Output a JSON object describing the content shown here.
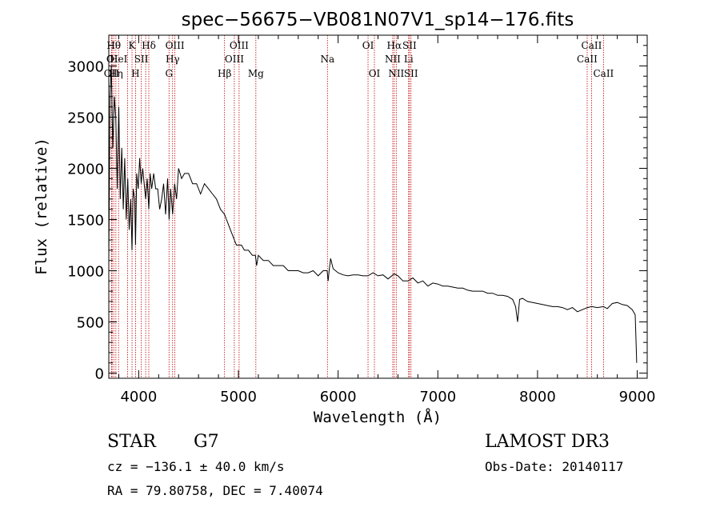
{
  "chart_data": {
    "type": "line",
    "title": "spec−56675−VB081N07V1_sp14−176.fits",
    "xlabel": "Wavelength (Å)",
    "ylabel": "Flux (relative)",
    "xlim": [
      3700,
      9100
    ],
    "ylim": [
      -50,
      3300
    ],
    "xticks": [
      4000,
      5000,
      6000,
      7000,
      8000,
      9000
    ],
    "yticks": [
      0,
      500,
      1000,
      1500,
      2000,
      2500,
      3000
    ],
    "series": [
      {
        "name": "flux",
        "x": [
          3700,
          3712,
          3725,
          3740,
          3755,
          3770,
          3785,
          3800,
          3815,
          3830,
          3845,
          3860,
          3875,
          3890,
          3905,
          3920,
          3933,
          3945,
          3960,
          3968,
          3980,
          3995,
          4010,
          4025,
          4040,
          4055,
          4070,
          4085,
          4101,
          4115,
          4130,
          4150,
          4170,
          4190,
          4210,
          4230,
          4250,
          4270,
          4290,
          4305,
          4320,
          4340,
          4360,
          4380,
          4400,
          4430,
          4460,
          4500,
          4540,
          4580,
          4620,
          4660,
          4700,
          4740,
          4780,
          4820,
          4861,
          4880,
          4900,
          4920,
          4940,
          4960,
          4980,
          5000,
          5030,
          5060,
          5100,
          5140,
          5170,
          5183,
          5200,
          5250,
          5300,
          5350,
          5400,
          5450,
          5500,
          5550,
          5600,
          5650,
          5700,
          5750,
          5800,
          5850,
          5890,
          5900,
          5910,
          5925,
          5950,
          6000,
          6050,
          6100,
          6150,
          6200,
          6250,
          6300,
          6350,
          6400,
          6450,
          6500,
          6563,
          6600,
          6650,
          6700,
          6750,
          6800,
          6850,
          6900,
          6950,
          7000,
          7050,
          7100,
          7150,
          7200,
          7250,
          7300,
          7350,
          7400,
          7450,
          7500,
          7550,
          7600,
          7650,
          7700,
          7750,
          7780,
          7800,
          7820,
          7850,
          7900,
          7950,
          8000,
          8050,
          8100,
          8150,
          8200,
          8250,
          8300,
          8350,
          8400,
          8450,
          8500,
          8542,
          8600,
          8662,
          8700,
          8750,
          8800,
          8850,
          8900,
          8950,
          8980,
          8995
        ],
        "y": [
          1100,
          2700,
          3000,
          2200,
          2700,
          2500,
          1800,
          2600,
          1700,
          2200,
          1600,
          2100,
          1500,
          1900,
          1400,
          1700,
          1200,
          1800,
          1700,
          1250,
          1950,
          1800,
          2100,
          1850,
          2000,
          1850,
          1700,
          1900,
          1600,
          1950,
          1800,
          1950,
          1800,
          1800,
          1600,
          1700,
          1850,
          1550,
          1900,
          1500,
          1800,
          1550,
          1850,
          1700,
          2000,
          1900,
          1950,
          1950,
          1850,
          1850,
          1750,
          1850,
          1800,
          1750,
          1700,
          1600,
          1550,
          1500,
          1450,
          1400,
          1350,
          1300,
          1250,
          1250,
          1250,
          1200,
          1200,
          1150,
          1150,
          1050,
          1150,
          1100,
          1100,
          1050,
          1050,
          1050,
          1000,
          1000,
          1000,
          980,
          980,
          1000,
          950,
          1000,
          1000,
          900,
          1000,
          1120,
          1020,
          980,
          960,
          950,
          960,
          960,
          950,
          950,
          980,
          950,
          960,
          920,
          970,
          950,
          900,
          900,
          930,
          880,
          900,
          850,
          880,
          870,
          850,
          850,
          840,
          830,
          830,
          810,
          800,
          800,
          800,
          780,
          780,
          760,
          760,
          750,
          720,
          650,
          500,
          720,
          730,
          700,
          690,
          680,
          670,
          660,
          650,
          650,
          640,
          620,
          640,
          600,
          620,
          640,
          650,
          640,
          650,
          630,
          680,
          690,
          670,
          660,
          620,
          570,
          100
        ]
      }
    ],
    "line_markers": [
      {
        "wl": 3727,
        "label": "OII",
        "row": 3
      },
      {
        "wl": 3733,
        "label": "OI",
        "row": 2
      },
      {
        "wl": 3750,
        "label": "Hθ",
        "row": 1
      },
      {
        "wl": 3771,
        "label": "Hη",
        "row": 3
      },
      {
        "wl": 3798,
        "label": "HeI",
        "row": 2
      },
      {
        "wl": 3889,
        "label": "",
        "row": 0
      },
      {
        "wl": 3933,
        "label": "K",
        "row": 1
      },
      {
        "wl": 3968,
        "label": "H",
        "row": 3
      },
      {
        "wl": 4026,
        "label": "SII",
        "row": 2
      },
      {
        "wl": 4070,
        "label": "",
        "row": 0
      },
      {
        "wl": 4101,
        "label": "Hδ",
        "row": 1
      },
      {
        "wl": 4304,
        "label": "G",
        "row": 3
      },
      {
        "wl": 4340,
        "label": "Hγ",
        "row": 2
      },
      {
        "wl": 4363,
        "label": "OIII",
        "row": 1
      },
      {
        "wl": 4861,
        "label": "Hβ",
        "row": 3
      },
      {
        "wl": 4959,
        "label": "OIII",
        "row": 2
      },
      {
        "wl": 5007,
        "label": "OIII",
        "row": 1
      },
      {
        "wl": 5175,
        "label": "Mg",
        "row": 3
      },
      {
        "wl": 5893,
        "label": "Na",
        "row": 2
      },
      {
        "wl": 6300,
        "label": "OI",
        "row": 1
      },
      {
        "wl": 6364,
        "label": "OI",
        "row": 3
      },
      {
        "wl": 6548,
        "label": "NII",
        "row": 2
      },
      {
        "wl": 6563,
        "label": "Hα",
        "row": 1
      },
      {
        "wl": 6583,
        "label": "NII",
        "row": 3
      },
      {
        "wl": 6707,
        "label": "Li",
        "row": 2
      },
      {
        "wl": 6716,
        "label": "SII",
        "row": 1
      },
      {
        "wl": 6731,
        "label": "SII",
        "row": 3
      },
      {
        "wl": 8498,
        "label": "CaII",
        "row": 2
      },
      {
        "wl": 8542,
        "label": "CaII",
        "row": 1
      },
      {
        "wl": 8662,
        "label": "CaII",
        "row": 3
      }
    ],
    "colors": {
      "spectrum": "#000000",
      "markers": "#c00000"
    }
  },
  "info": {
    "class": "STAR",
    "subclass": "G7",
    "survey": "LAMOST DR3",
    "cz": "cz = −136.1 ± 40.0 km/s",
    "obsdate": "Obs-Date: 20140117",
    "coords": "RA =  79.80758, DEC =   7.40074"
  }
}
